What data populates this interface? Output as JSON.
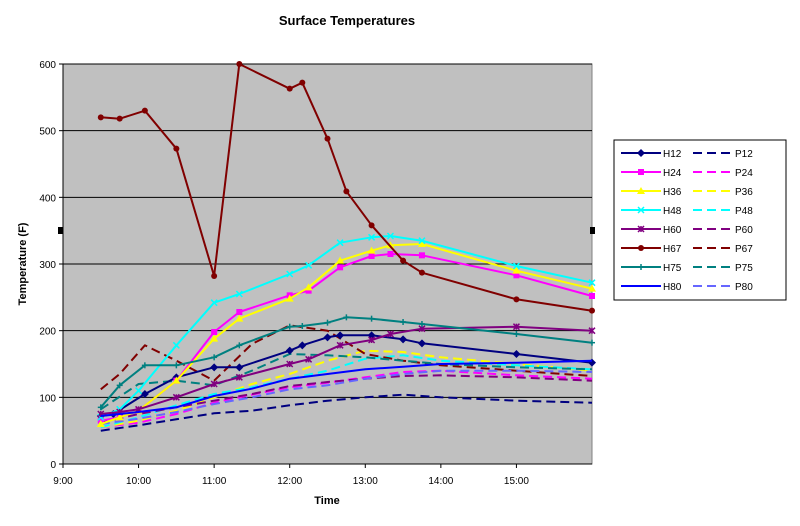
{
  "chart_data": {
    "type": "line",
    "title": "Surface Temperatures",
    "xlabel": "Time",
    "ylabel": "Temperature (F)",
    "x_type": "time",
    "xlim": [
      "9:00",
      "16:00"
    ],
    "ylim": [
      0,
      600
    ],
    "x_ticks": [
      "9:00",
      "10:00",
      "11:00",
      "12:00",
      "13:00",
      "14:00",
      "15:00"
    ],
    "y_ticks": [
      0,
      100,
      200,
      300,
      400,
      500,
      600
    ],
    "plot_background": "#c0c0c0",
    "grid": "horizontal",
    "legend_position": "right",
    "series": [
      {
        "name": "H12",
        "color": "#000080",
        "dash": "solid",
        "marker": "diamond",
        "points": [
          [
            "9:30",
            72
          ],
          [
            "9:40",
            75
          ],
          [
            "10:05",
            105
          ],
          [
            "10:30",
            130
          ],
          [
            "11:00",
            145
          ],
          [
            "11:20",
            145
          ],
          [
            "12:00",
            170
          ],
          [
            "12:10",
            178
          ],
          [
            "12:30",
            190
          ],
          [
            "12:40",
            193
          ],
          [
            "13:05",
            193
          ],
          [
            "13:30",
            187
          ],
          [
            "13:45",
            181
          ],
          [
            "15:00",
            165
          ],
          [
            "16:00",
            152
          ]
        ]
      },
      {
        "name": "P12",
        "color": "#000080",
        "dash": "dashed",
        "marker": "none",
        "points": [
          [
            "9:30",
            50
          ],
          [
            "10:00",
            58
          ],
          [
            "10:30",
            67
          ],
          [
            "11:00",
            76
          ],
          [
            "11:30",
            80
          ],
          [
            "12:00",
            88
          ],
          [
            "12:30",
            95
          ],
          [
            "13:00",
            100
          ],
          [
            "13:30",
            104
          ],
          [
            "14:00",
            100
          ],
          [
            "15:00",
            95
          ],
          [
            "16:00",
            92
          ]
        ]
      },
      {
        "name": "H24",
        "color": "#ff00ff",
        "dash": "solid",
        "marker": "square",
        "points": [
          [
            "9:30",
            65
          ],
          [
            "9:45",
            70
          ],
          [
            "10:00",
            80
          ],
          [
            "10:30",
            125
          ],
          [
            "11:00",
            198
          ],
          [
            "11:20",
            228
          ],
          [
            "12:00",
            253
          ],
          [
            "12:15",
            260
          ],
          [
            "12:40",
            295
          ],
          [
            "13:05",
            312
          ],
          [
            "13:20",
            315
          ],
          [
            "13:45",
            313
          ],
          [
            "15:00",
            283
          ],
          [
            "16:00",
            252
          ]
        ]
      },
      {
        "name": "P24",
        "color": "#ff00ff",
        "dash": "dashed",
        "marker": "none",
        "points": [
          [
            "9:30",
            55
          ],
          [
            "10:00",
            62
          ],
          [
            "10:30",
            75
          ],
          [
            "11:00",
            92
          ],
          [
            "11:30",
            104
          ],
          [
            "12:00",
            115
          ],
          [
            "12:30",
            122
          ],
          [
            "13:00",
            130
          ],
          [
            "13:30",
            138
          ],
          [
            "14:00",
            140
          ],
          [
            "15:00",
            133
          ],
          [
            "16:00",
            128
          ]
        ]
      },
      {
        "name": "H36",
        "color": "#ffff00",
        "dash": "solid",
        "marker": "triangle",
        "points": [
          [
            "9:30",
            60
          ],
          [
            "9:45",
            70
          ],
          [
            "10:00",
            80
          ],
          [
            "10:30",
            125
          ],
          [
            "11:00",
            188
          ],
          [
            "11:20",
            218
          ],
          [
            "12:00",
            248
          ],
          [
            "12:15",
            265
          ],
          [
            "12:40",
            305
          ],
          [
            "13:05",
            320
          ],
          [
            "13:20",
            328
          ],
          [
            "13:45",
            330
          ],
          [
            "15:00",
            290
          ],
          [
            "16:00",
            263
          ]
        ]
      },
      {
        "name": "P36",
        "color": "#ffff00",
        "dash": "dashed",
        "marker": "none",
        "points": [
          [
            "9:30",
            55
          ],
          [
            "10:00",
            65
          ],
          [
            "10:30",
            80
          ],
          [
            "11:00",
            100
          ],
          [
            "11:30",
            120
          ],
          [
            "12:00",
            135
          ],
          [
            "12:30",
            155
          ],
          [
            "13:00",
            170
          ],
          [
            "13:30",
            168
          ],
          [
            "14:00",
            160
          ],
          [
            "15:00",
            150
          ],
          [
            "16:00",
            140
          ]
        ]
      },
      {
        "name": "H48",
        "color": "#00ffff",
        "dash": "solid",
        "marker": "star",
        "points": [
          [
            "9:30",
            70
          ],
          [
            "9:45",
            82
          ],
          [
            "10:00",
            110
          ],
          [
            "10:30",
            178
          ],
          [
            "11:00",
            242
          ],
          [
            "11:20",
            255
          ],
          [
            "12:00",
            285
          ],
          [
            "12:15",
            298
          ],
          [
            "12:40",
            332
          ],
          [
            "13:05",
            340
          ],
          [
            "13:20",
            342
          ],
          [
            "13:45",
            335
          ],
          [
            "15:00",
            297
          ],
          [
            "16:00",
            272
          ]
        ]
      },
      {
        "name": "P48",
        "color": "#00ffff",
        "dash": "dashed",
        "marker": "none",
        "points": [
          [
            "9:30",
            55
          ],
          [
            "10:00",
            70
          ],
          [
            "10:30",
            88
          ],
          [
            "11:00",
            105
          ],
          [
            "11:30",
            115
          ],
          [
            "12:00",
            128
          ],
          [
            "12:30",
            140
          ],
          [
            "13:00",
            158
          ],
          [
            "13:30",
            163
          ],
          [
            "14:00",
            155
          ],
          [
            "15:00",
            148
          ],
          [
            "16:00",
            142
          ]
        ]
      },
      {
        "name": "H60",
        "color": "#800080",
        "dash": "solid",
        "marker": "asterisk",
        "points": [
          [
            "9:30",
            75
          ],
          [
            "9:45",
            78
          ],
          [
            "10:00",
            82
          ],
          [
            "10:30",
            100
          ],
          [
            "11:00",
            120
          ],
          [
            "11:20",
            130
          ],
          [
            "12:00",
            150
          ],
          [
            "12:15",
            157
          ],
          [
            "12:40",
            178
          ],
          [
            "13:05",
            186
          ],
          [
            "13:20",
            195
          ],
          [
            "13:45",
            203
          ],
          [
            "15:00",
            206
          ],
          [
            "16:00",
            200
          ]
        ]
      },
      {
        "name": "P60",
        "color": "#800080",
        "dash": "dashed",
        "marker": "none",
        "points": [
          [
            "9:30",
            62
          ],
          [
            "10:00",
            75
          ],
          [
            "10:30",
            85
          ],
          [
            "11:00",
            95
          ],
          [
            "11:30",
            105
          ],
          [
            "12:00",
            117
          ],
          [
            "12:30",
            123
          ],
          [
            "13:00",
            128
          ],
          [
            "13:30",
            132
          ],
          [
            "14:00",
            133
          ],
          [
            "15:00",
            130
          ],
          [
            "16:00",
            125
          ]
        ]
      },
      {
        "name": "H67",
        "color": "#800000",
        "dash": "solid",
        "marker": "circle",
        "points": [
          [
            "9:30",
            520
          ],
          [
            "9:45",
            518
          ],
          [
            "10:05",
            530
          ],
          [
            "10:30",
            473
          ],
          [
            "11:00",
            282
          ],
          [
            "11:20",
            600
          ],
          [
            "12:00",
            563
          ],
          [
            "12:10",
            572
          ],
          [
            "12:30",
            488
          ],
          [
            "12:45",
            409
          ],
          [
            "13:05",
            358
          ],
          [
            "13:30",
            305
          ],
          [
            "13:45",
            287
          ],
          [
            "15:00",
            247
          ],
          [
            "16:00",
            230
          ]
        ]
      },
      {
        "name": "P67",
        "color": "#800000",
        "dash": "dashed",
        "marker": "none",
        "points": [
          [
            "9:30",
            112
          ],
          [
            "9:45",
            135
          ],
          [
            "10:05",
            178
          ],
          [
            "10:30",
            155
          ],
          [
            "11:00",
            125
          ],
          [
            "11:30",
            180
          ],
          [
            "12:00",
            208
          ],
          [
            "12:30",
            200
          ],
          [
            "13:00",
            165
          ],
          [
            "13:30",
            155
          ],
          [
            "14:00",
            148
          ],
          [
            "15:00",
            140
          ],
          [
            "16:00",
            132
          ]
        ]
      },
      {
        "name": "H75",
        "color": "#008080",
        "dash": "solid",
        "marker": "plus",
        "points": [
          [
            "9:30",
            85
          ],
          [
            "9:45",
            118
          ],
          [
            "10:05",
            148
          ],
          [
            "10:30",
            148
          ],
          [
            "11:00",
            160
          ],
          [
            "11:20",
            178
          ],
          [
            "12:00",
            206
          ],
          [
            "12:10",
            207
          ],
          [
            "12:30",
            212
          ],
          [
            "12:45",
            220
          ],
          [
            "13:05",
            218
          ],
          [
            "13:30",
            213
          ],
          [
            "13:45",
            210
          ],
          [
            "15:00",
            195
          ],
          [
            "16:00",
            182
          ]
        ]
      },
      {
        "name": "P75",
        "color": "#008080",
        "dash": "dashed",
        "marker": "none",
        "points": [
          [
            "9:30",
            82
          ],
          [
            "10:00",
            120
          ],
          [
            "10:30",
            125
          ],
          [
            "11:00",
            118
          ],
          [
            "11:30",
            140
          ],
          [
            "12:00",
            165
          ],
          [
            "12:30",
            163
          ],
          [
            "13:00",
            160
          ],
          [
            "13:30",
            155
          ],
          [
            "14:00",
            150
          ],
          [
            "15:00",
            145
          ],
          [
            "16:00",
            142
          ]
        ]
      },
      {
        "name": "H80",
        "color": "#0000ff",
        "dash": "solid",
        "marker": "none",
        "points": [
          [
            "9:30",
            72
          ],
          [
            "10:00",
            78
          ],
          [
            "10:30",
            85
          ],
          [
            "11:00",
            102
          ],
          [
            "11:30",
            113
          ],
          [
            "12:00",
            128
          ],
          [
            "12:30",
            135
          ],
          [
            "13:00",
            142
          ],
          [
            "13:30",
            146
          ],
          [
            "14:00",
            150
          ],
          [
            "15:00",
            152
          ],
          [
            "16:00",
            155
          ]
        ]
      },
      {
        "name": "P80",
        "color": "#6666ff",
        "dash": "dashed",
        "marker": "none",
        "points": [
          [
            "9:30",
            60
          ],
          [
            "10:00",
            68
          ],
          [
            "10:30",
            78
          ],
          [
            "11:00",
            90
          ],
          [
            "11:30",
            100
          ],
          [
            "12:00",
            112
          ],
          [
            "12:30",
            118
          ],
          [
            "13:00",
            128
          ],
          [
            "13:30",
            135
          ],
          [
            "14:00",
            140
          ],
          [
            "15:00",
            140
          ],
          [
            "16:00",
            138
          ]
        ]
      }
    ]
  }
}
